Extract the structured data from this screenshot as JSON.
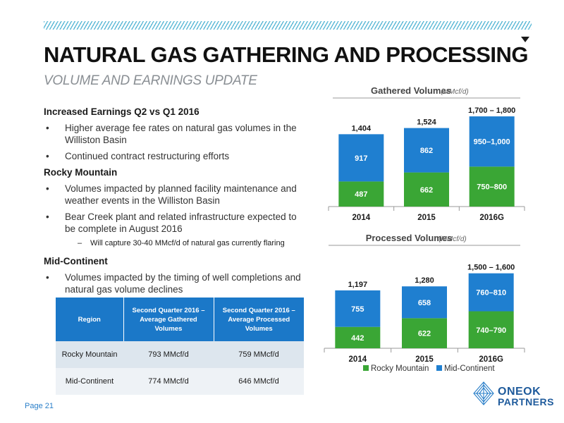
{
  "header": {
    "title": "NATURAL GAS GATHERING AND PROCESSING",
    "subtitle": "VOLUME AND EARNINGS UPDATE"
  },
  "content": {
    "section1": {
      "heading": "Increased Earnings Q2 vs Q1 2016",
      "items": [
        "Higher average fee rates on natural gas volumes in the Williston Basin",
        "Continued contract restructuring efforts"
      ]
    },
    "section2": {
      "heading": "Rocky Mountain",
      "items": [
        "Volumes impacted by planned facility maintenance and weather events in the Williston Basin",
        "Bear Creek plant and related infrastructure expected to be complete in August 2016"
      ],
      "sub_item": "Will capture 30-40 MMcf/d of natural gas currently flaring"
    },
    "section3": {
      "heading": "Mid-Continent",
      "items": [
        "Volumes impacted by the timing of well completions and natural gas volume declines"
      ]
    }
  },
  "table": {
    "headers": [
      "Region",
      "Second Quarter 2016 – Average Gathered Volumes",
      "Second Quarter 2016 – Average Processed Volumes"
    ],
    "rows": [
      [
        "Rocky Mountain",
        "793 MMcf/d",
        "759 MMcf/d"
      ],
      [
        "Mid-Continent",
        "774 MMcf/d",
        "646 MMcf/d"
      ]
    ]
  },
  "footer": {
    "page": "Page 21",
    "logo_line1": "ONEOK",
    "logo_line2": "PARTNERS"
  },
  "colors": {
    "rocky_mountain": "#3aa635",
    "mid_continent": "#1f7fd0",
    "hatch": "#5bb8d6",
    "table_header": "#1b78c8"
  },
  "chart_data": [
    {
      "type": "bar",
      "stacked": true,
      "title": "Gathered Volumes",
      "unit": "(MMcf/d)",
      "categories": [
        "2014",
        "2015",
        "2016G"
      ],
      "series": [
        {
          "name": "Rocky Mountain",
          "values": [
            487,
            662,
            775
          ],
          "labels": [
            "487",
            "662",
            "750–800"
          ]
        },
        {
          "name": "Mid-Continent",
          "values": [
            917,
            862,
            975
          ],
          "labels": [
            "917",
            "862",
            "950–1,000"
          ]
        }
      ],
      "totals": [
        "1,404",
        "1,524",
        "1,700 – 1,800"
      ],
      "ylim": [
        0,
        1800
      ]
    },
    {
      "type": "bar",
      "stacked": true,
      "title": "Processed Volumes",
      "unit": "(MMcf/d)",
      "categories": [
        "2014",
        "2015",
        "2016G"
      ],
      "series": [
        {
          "name": "Rocky Mountain",
          "values": [
            442,
            622,
            765
          ],
          "labels": [
            "442",
            "622",
            "740–790"
          ]
        },
        {
          "name": "Mid-Continent",
          "values": [
            755,
            658,
            785
          ],
          "labels": [
            "755",
            "658",
            "760–810"
          ]
        }
      ],
      "totals": [
        "1,197",
        "1,280",
        "1,500 – 1,600"
      ],
      "ylim": [
        0,
        1600
      ]
    }
  ],
  "legend": [
    "Rocky Mountain",
    "Mid-Continent"
  ]
}
